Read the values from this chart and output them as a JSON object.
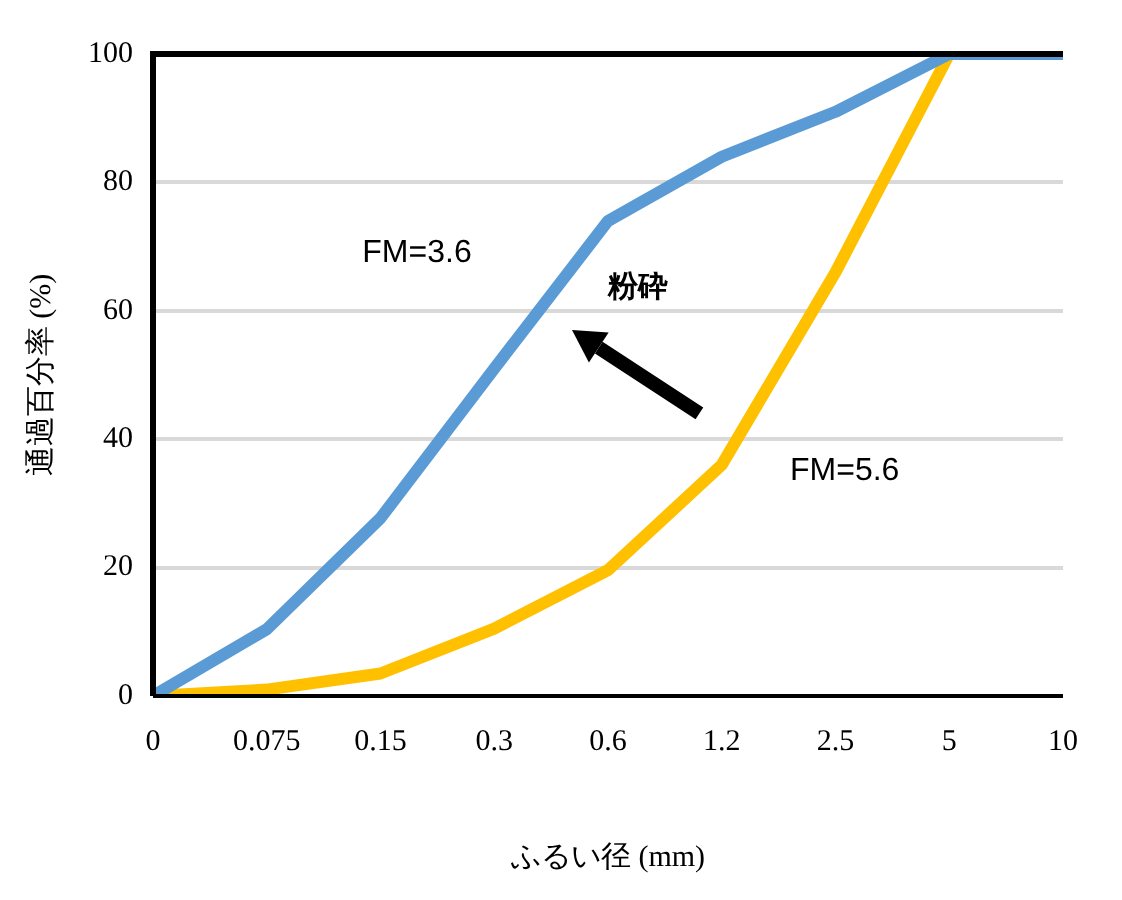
{
  "chart_data": {
    "type": "line",
    "xlabel": "ふるい径 (mm)",
    "ylabel": "通過百分率 (%)",
    "categories": [
      "0",
      "0.075",
      "0.15",
      "0.3",
      "0.6",
      "1.2",
      "2.5",
      "5",
      "10"
    ],
    "series": [
      {
        "name": "FM=3.6",
        "color": "#5b9bd5",
        "values": [
          0,
          10.4,
          27.7,
          51,
          74,
          84,
          91,
          100,
          100
        ]
      },
      {
        "name": "FM=5.6",
        "color": "#ffc000",
        "values": [
          0,
          1,
          3.5,
          10.5,
          19.6,
          36,
          66,
          100,
          null
        ]
      }
    ],
    "annotations": [
      "粉砕"
    ],
    "ylim": [
      0,
      100
    ],
    "yticks": [
      0,
      20,
      40,
      60,
      80,
      100
    ],
    "grid": "y",
    "legend": false,
    "marker": "none",
    "line_style": "solid"
  }
}
